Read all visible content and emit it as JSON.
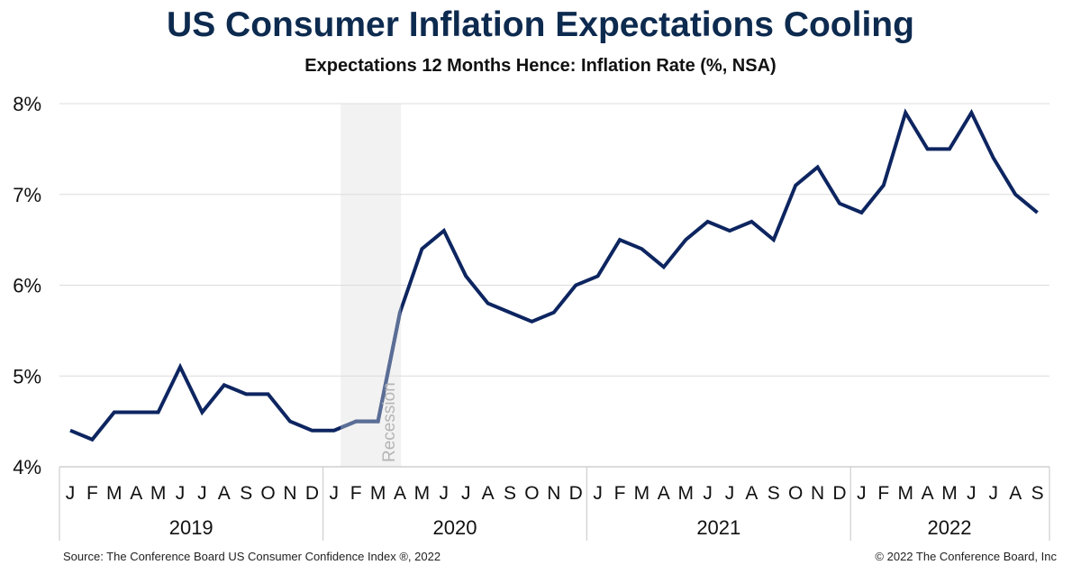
{
  "chart_data": {
    "type": "line",
    "title": "US Consumer Inflation Expectations Cooling",
    "subtitle": "Expectations 12 Months Hence: Inflation Rate (%, NSA)",
    "years": [
      "2019",
      "2020",
      "2021",
      "2022"
    ],
    "month_labels": [
      "J",
      "F",
      "M",
      "A",
      "M",
      "J",
      "J",
      "A",
      "S",
      "O",
      "N",
      "D"
    ],
    "yticks": [
      "4%",
      "5%",
      "6%",
      "7%",
      "8%"
    ],
    "ylim": [
      4,
      8
    ],
    "grid": true,
    "series": [
      {
        "color": "#0d2560",
        "values": [
          4.4,
          4.3,
          4.6,
          4.6,
          4.6,
          5.1,
          4.6,
          4.9,
          4.8,
          4.8,
          4.5,
          4.4,
          4.4,
          4.5,
          4.5,
          5.7,
          6.4,
          6.6,
          6.1,
          5.8,
          5.7,
          5.6,
          5.7,
          6.0,
          6.1,
          6.5,
          6.4,
          6.2,
          6.5,
          6.7,
          6.6,
          6.7,
          6.5,
          7.1,
          7.3,
          6.9,
          6.8,
          7.1,
          7.9,
          7.5,
          7.5,
          7.9,
          7.4,
          7.0,
          6.8
        ]
      }
    ],
    "recession": {
      "label": "Recession",
      "start": "2020-02",
      "end": "2020-04",
      "color": "#f2f2f2"
    }
  },
  "footer": {
    "source": "Source: The Conference Board US Consumer Confidence Index ®, 2022",
    "copyright": "© 2022 The Conference Board, Inc"
  }
}
